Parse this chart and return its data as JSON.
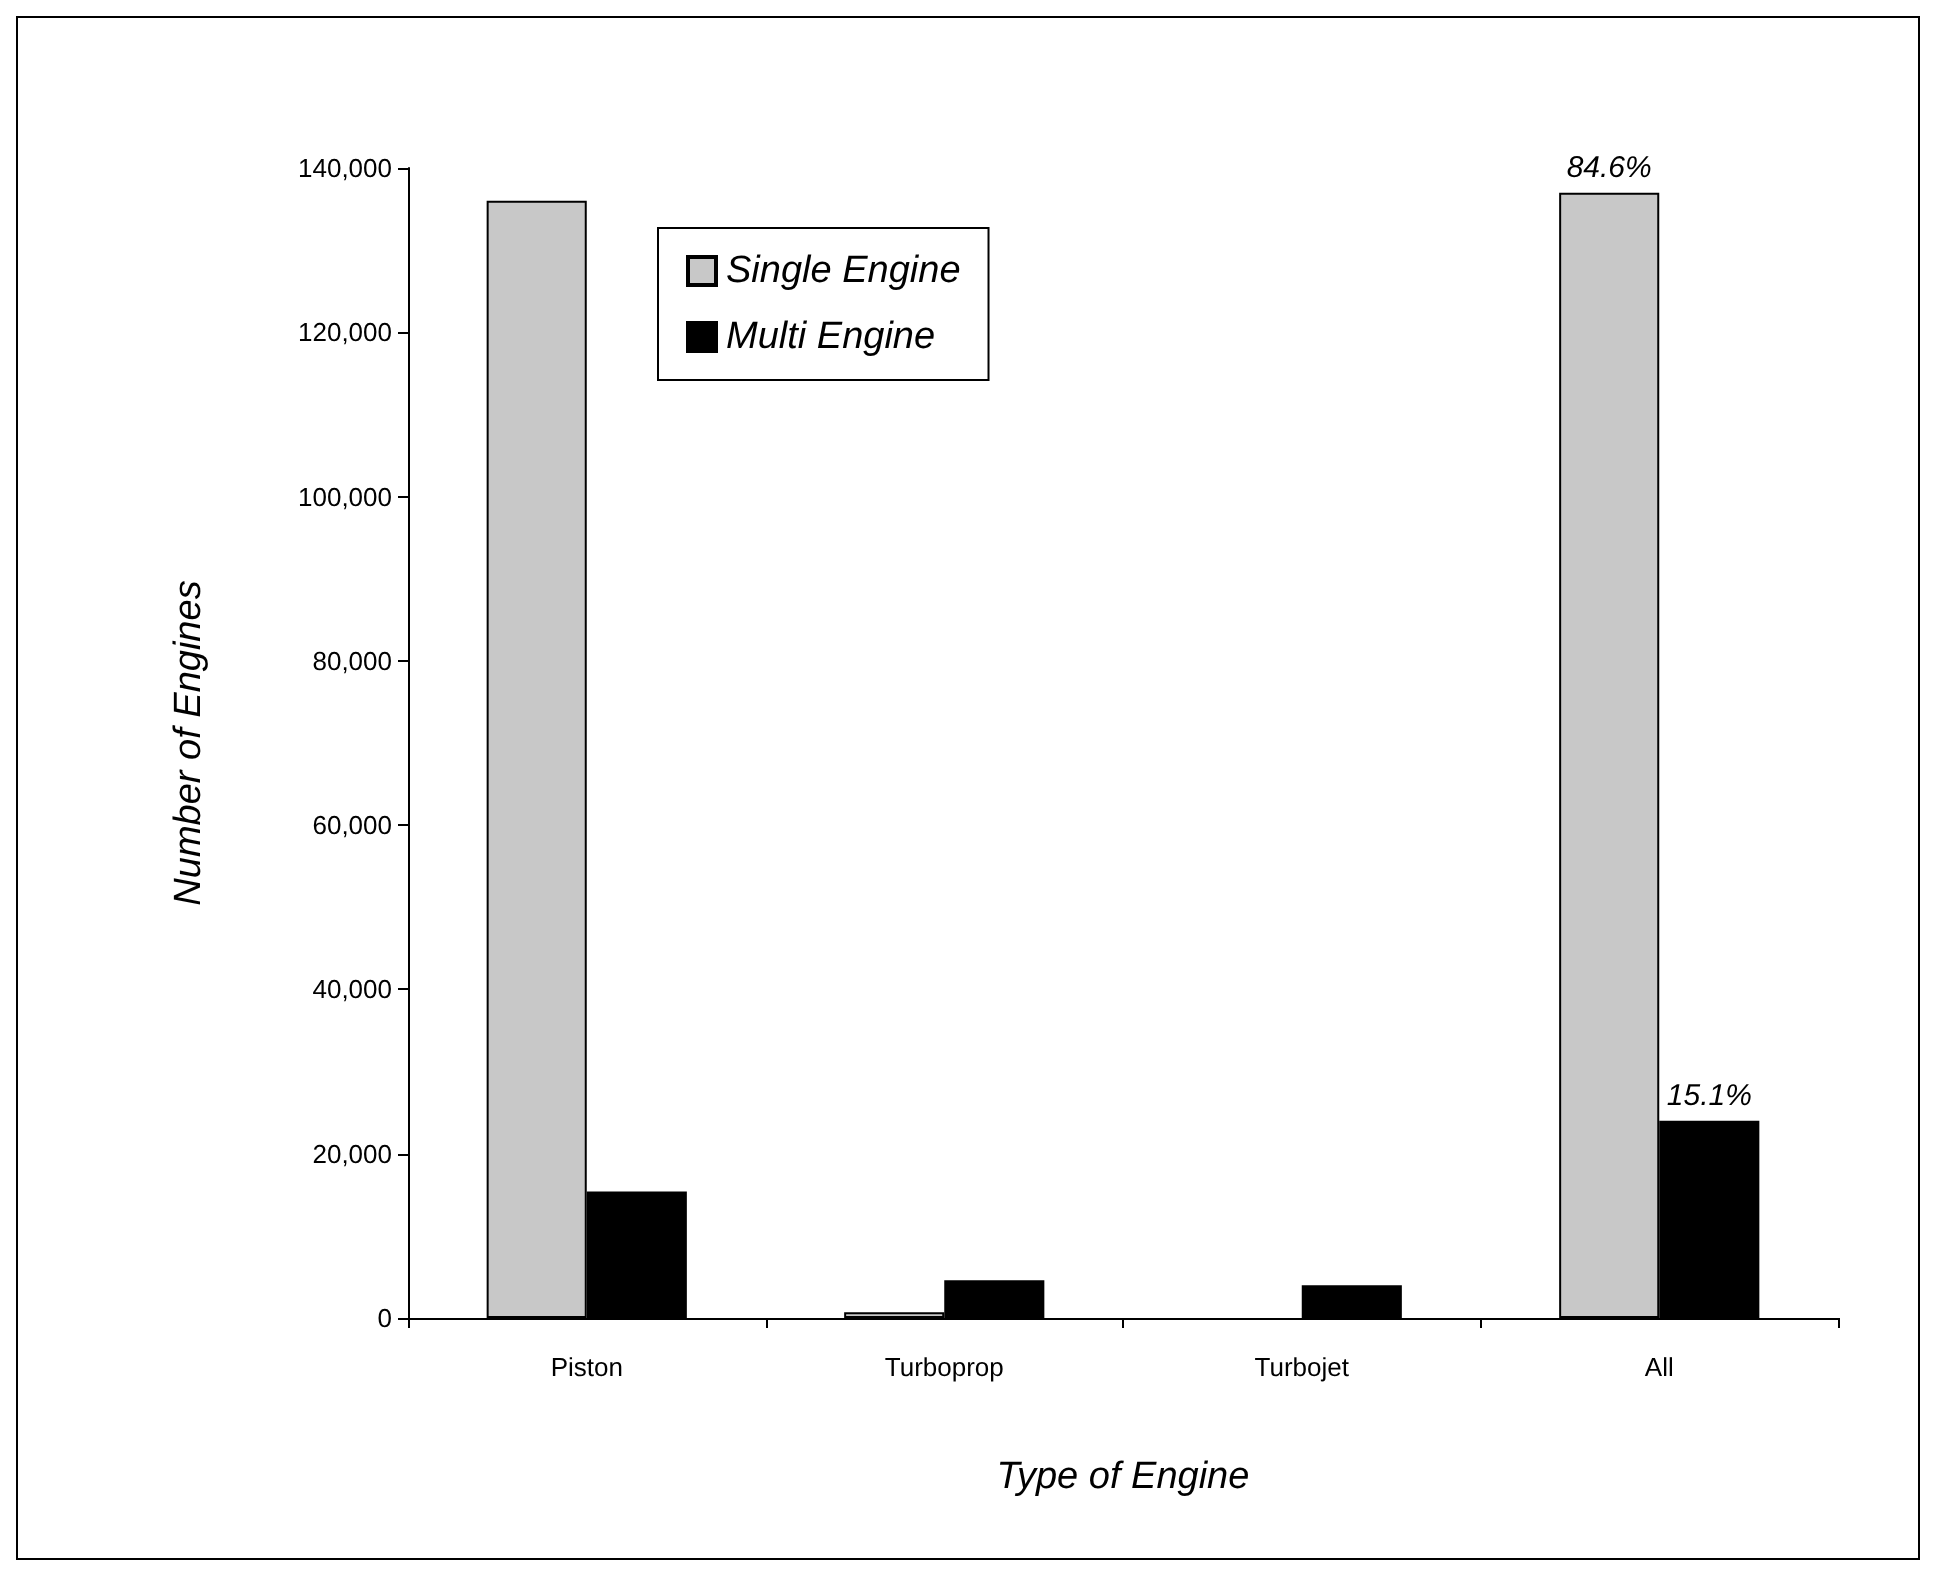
{
  "chart_data": {
    "type": "bar",
    "xlabel": "Type of Engine",
    "ylabel": "Number of Engines",
    "categories": [
      "Piston",
      "Turboprop",
      "Turbojet",
      "All"
    ],
    "series": [
      {
        "name": "Single Engine",
        "color": "#c8c8c8",
        "values": [
          136000,
          700,
          0,
          137000
        ]
      },
      {
        "name": "Multi Engine",
        "color": "#000000",
        "values": [
          15400,
          4600,
          4000,
          24000
        ]
      }
    ],
    "ylim": [
      0,
      140000
    ],
    "yticks": [
      0,
      {
        "value": 20000,
        "label": "20,000"
      },
      {
        "value": 40000,
        "label": "40,000"
      },
      {
        "value": 60000,
        "label": "60,000"
      },
      {
        "value": 80000,
        "label": "80,000"
      },
      {
        "value": 100000,
        "label": "100,000"
      },
      {
        "value": 120000,
        "label": "120,000"
      },
      {
        "value": 140000,
        "label": "140,000"
      }
    ],
    "grid": false,
    "legend": "top left",
    "annotations": [
      {
        "text": "84.6%",
        "x": "All",
        "y": 137000
      },
      {
        "text": "15.1%",
        "x": "All",
        "y": 24000
      }
    ]
  }
}
